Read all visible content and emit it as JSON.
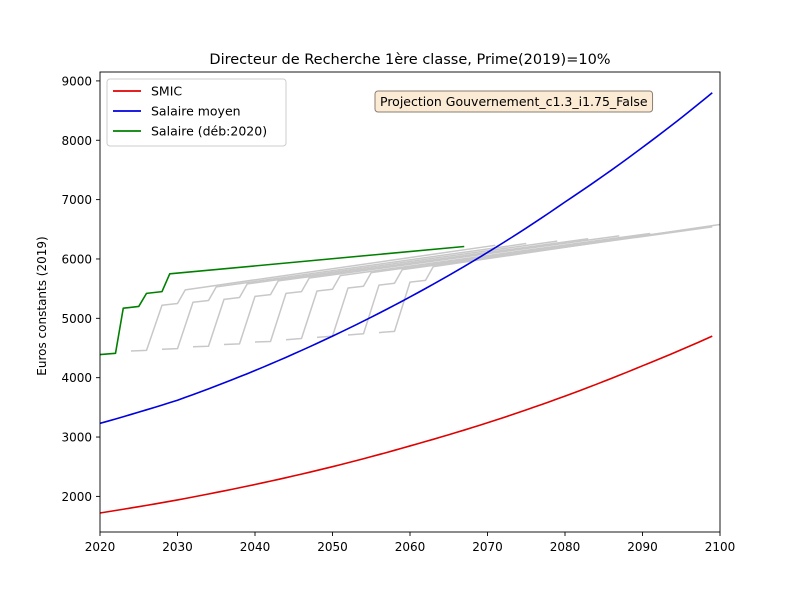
{
  "chart_data": {
    "type": "line",
    "title": "Directeur de Recherche 1ère classe, Prime(2019)=10%",
    "xlabel": "",
    "ylabel": "Euros constants (2019)",
    "xlim": [
      2020,
      2100
    ],
    "ylim": [
      1400,
      9150
    ],
    "xticks": [
      2020,
      2030,
      2040,
      2050,
      2060,
      2070,
      2080,
      2090,
      2100
    ],
    "yticks": [
      2000,
      3000,
      4000,
      5000,
      6000,
      7000,
      8000,
      9000
    ],
    "grid": false,
    "legend_placement": "upper-left",
    "annotation": "Projection Gouvernement_c1.3_i1.75_False",
    "colors": {
      "smic": "#e00000",
      "salaire_moyen": "#0000e0",
      "salaire_deb": "#008000",
      "cohorts": "#c8c8c8",
      "annotation_bg": "#fbebd5",
      "annotation_border": "#8a7f72"
    },
    "series": [
      {
        "name": "SMIC",
        "color": "#e00000",
        "x": [
          2020,
          2030,
          2040,
          2050,
          2060,
          2070,
          2080,
          2090,
          2099
        ],
        "y": [
          1720,
          1940,
          2200,
          2500,
          2850,
          3240,
          3690,
          4200,
          4700
        ]
      },
      {
        "name": "Salaire moyen",
        "color": "#0000e0",
        "x": [
          2020,
          2030,
          2040,
          2050,
          2060,
          2070,
          2080,
          2090,
          2099
        ],
        "y": [
          3230,
          3620,
          4120,
          4700,
          5360,
          6110,
          6960,
          7880,
          8800
        ]
      },
      {
        "name": "Salaire (déb:2020)",
        "color": "#008000",
        "x": [
          2020,
          2022,
          2023,
          2025,
          2026,
          2028,
          2029,
          2067
        ],
        "y": [
          4390,
          4410,
          5170,
          5200,
          5420,
          5450,
          5750,
          6210
        ]
      }
    ],
    "cohorts": {
      "color": "#c8c8c8",
      "note": "grey lines: same career for later start years",
      "entries": [
        {
          "start": 2024,
          "x": [
            2024,
            2026,
            2028,
            2030,
            2031,
            2071
          ],
          "y": [
            4450,
            4460,
            5220,
            5250,
            5480,
            6230
          ]
        },
        {
          "start": 2028,
          "x": [
            2028,
            2030,
            2032,
            2034,
            2035,
            2075
          ],
          "y": [
            4480,
            4490,
            5270,
            5300,
            5530,
            6260
          ]
        },
        {
          "start": 2032,
          "x": [
            2032,
            2034,
            2036,
            2038,
            2039,
            2079
          ],
          "y": [
            4520,
            4530,
            5320,
            5350,
            5580,
            6300
          ]
        },
        {
          "start": 2036,
          "x": [
            2036,
            2038,
            2040,
            2042,
            2043,
            2083
          ],
          "y": [
            4560,
            4570,
            5370,
            5400,
            5630,
            6340
          ]
        },
        {
          "start": 2040,
          "x": [
            2040,
            2042,
            2044,
            2046,
            2047,
            2087
          ],
          "y": [
            4600,
            4610,
            5420,
            5450,
            5680,
            6390
          ]
        },
        {
          "start": 2044,
          "x": [
            2044,
            2046,
            2048,
            2050,
            2051,
            2091
          ],
          "y": [
            4640,
            4660,
            5460,
            5490,
            5720,
            6430
          ]
        },
        {
          "start": 2048,
          "x": [
            2048,
            2050,
            2052,
            2054,
            2055,
            2095
          ],
          "y": [
            4680,
            4700,
            5510,
            5540,
            5770,
            6480
          ]
        },
        {
          "start": 2052,
          "x": [
            2052,
            2054,
            2056,
            2058,
            2059,
            2099
          ],
          "y": [
            4720,
            4740,
            5560,
            5590,
            5820,
            6540
          ]
        },
        {
          "start": 2056,
          "x": [
            2056,
            2058,
            2060,
            2062,
            2063,
            2100
          ],
          "y": [
            4760,
            4780,
            5610,
            5640,
            5870,
            6580
          ]
        }
      ]
    }
  }
}
